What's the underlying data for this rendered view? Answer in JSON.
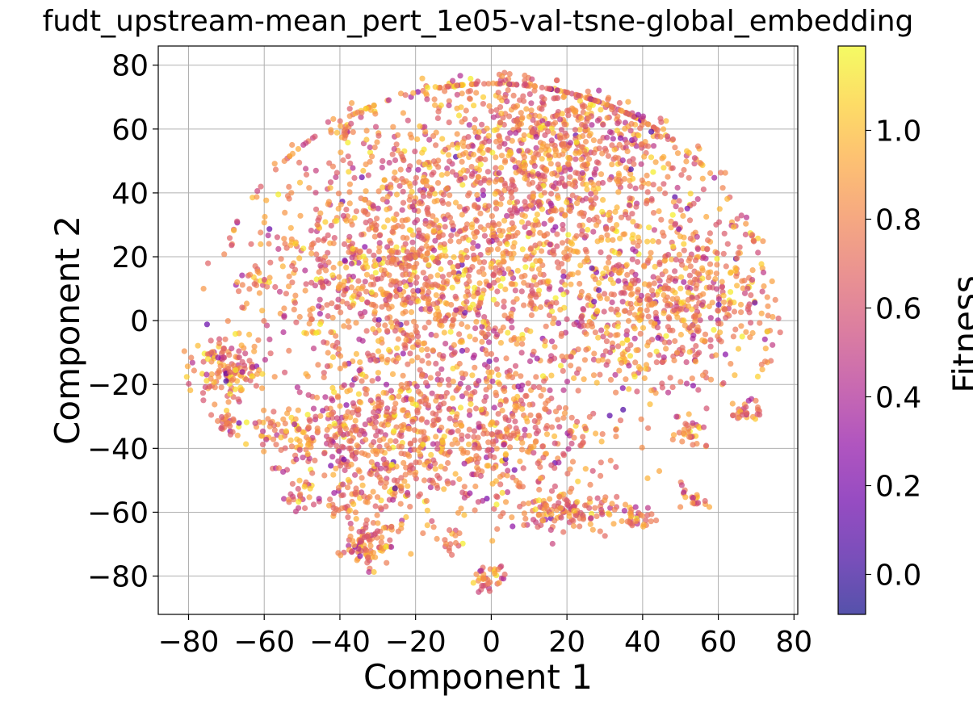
{
  "chart_data": {
    "type": "scatter",
    "title": "fudt_upstream-mean_pert_1e05-val-tsne-global_embedding",
    "xlabel": "Component 1",
    "ylabel": "Component 2",
    "xlim": [
      -88,
      81
    ],
    "ylim": [
      -92,
      86
    ],
    "xticks": [
      -80,
      -60,
      -40,
      -20,
      0,
      20,
      40,
      60,
      80
    ],
    "xtick_labels": [
      "−80",
      "−60",
      "−40",
      "−20",
      "0",
      "20",
      "40",
      "60",
      "80"
    ],
    "yticks": [
      -80,
      -60,
      -40,
      -20,
      0,
      20,
      40,
      60,
      80
    ],
    "ytick_labels": [
      "−80",
      "−60",
      "−40",
      "−20",
      "0",
      "20",
      "40",
      "60",
      "80"
    ],
    "grid": true,
    "colorbar": {
      "label": "Fitness",
      "range": [
        -0.09,
        1.19
      ],
      "colormap": "plasma",
      "ticks": [
        0.0,
        0.2,
        0.4,
        0.6,
        0.8,
        1.0
      ],
      "tick_labels": [
        "0.0",
        "0.2",
        "0.4",
        "0.6",
        "0.8",
        "1.0"
      ]
    },
    "point_alpha": 0.7,
    "clusters": [
      {
        "cx": 5,
        "cy": 30,
        "sx": 28,
        "sy": 30,
        "n": 1700
      },
      {
        "cx": -28,
        "cy": 12,
        "sx": 16,
        "sy": 18,
        "n": 600
      },
      {
        "cx": 48,
        "cy": 5,
        "sx": 14,
        "sy": 14,
        "n": 500
      },
      {
        "cx": -30,
        "cy": -40,
        "sx": 12,
        "sy": 12,
        "n": 500
      },
      {
        "cx": 5,
        "cy": -35,
        "sx": 12,
        "sy": 12,
        "n": 350
      },
      {
        "cx": 20,
        "cy": 58,
        "sx": 14,
        "sy": 10,
        "n": 300
      },
      {
        "cx": -70,
        "cy": -16,
        "sx": 5,
        "sy": 5,
        "n": 140
      },
      {
        "cx": -70,
        "cy": -32,
        "sx": 2,
        "sy": 2,
        "n": 25
      },
      {
        "cx": -33,
        "cy": -70,
        "sx": 4,
        "sy": 3,
        "n": 90
      },
      {
        "cx": 0,
        "cy": -81,
        "sx": 2,
        "sy": 2,
        "n": 35
      },
      {
        "cx": 22,
        "cy": -60,
        "sx": 7,
        "sy": 3,
        "n": 120
      },
      {
        "cx": 39,
        "cy": -62,
        "sx": 2,
        "sy": 2,
        "n": 25
      },
      {
        "cx": 53,
        "cy": -56,
        "sx": 2,
        "sy": 2,
        "n": 20
      },
      {
        "cx": 67,
        "cy": -29,
        "sx": 2,
        "sy": 2,
        "n": 25
      },
      {
        "cx": -10,
        "cy": -70,
        "sx": 2,
        "sy": 2,
        "n": 15
      },
      {
        "cx": -52,
        "cy": -56,
        "sx": 2,
        "sy": 2,
        "n": 15
      },
      {
        "cx": -62,
        "cy": 12,
        "sx": 2,
        "sy": 2,
        "n": 20
      },
      {
        "cx": -39,
        "cy": 60,
        "sx": 2,
        "sy": 1,
        "n": 15
      },
      {
        "cx": -55,
        "cy": -35,
        "sx": 5,
        "sy": 4,
        "n": 60
      },
      {
        "cx": 52,
        "cy": -35,
        "sx": 3,
        "sy": 3,
        "n": 30
      }
    ]
  }
}
